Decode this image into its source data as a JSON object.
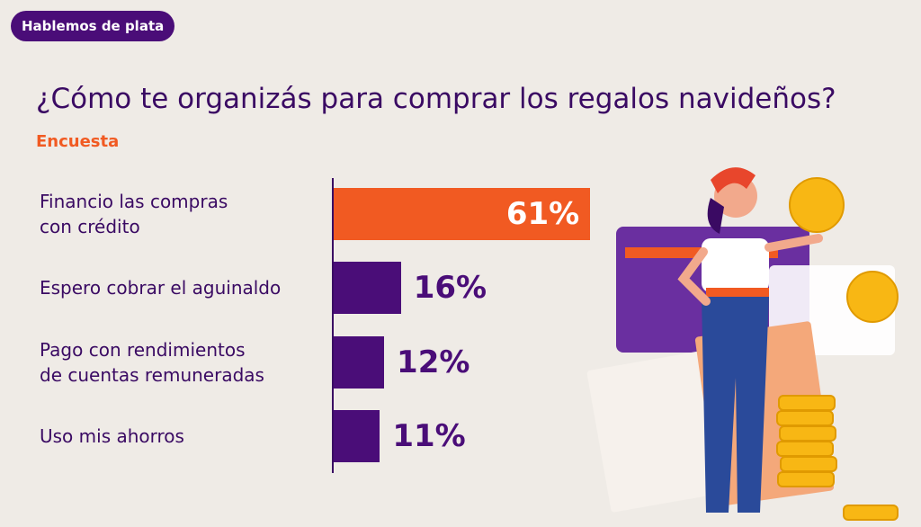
{
  "badge": "Hablemos de plata",
  "chart_data": {
    "type": "bar",
    "orientation": "horizontal",
    "title": "¿Cómo te organizás para comprar los regalos navideños?",
    "subtitle": "Encuesta",
    "categories": [
      "Financio las compras\ncon crédito",
      "Espero cobrar el aguinaldo",
      "Pago con rendimientos\nde cuentas remuneradas",
      "Uso mis ahorros"
    ],
    "values": [
      61,
      16,
      12,
      11
    ],
    "value_labels": [
      "61%",
      "16%",
      "12%",
      "11%"
    ],
    "colors": [
      "#f15a22",
      "#4a0d78",
      "#4a0d78",
      "#4a0d78"
    ]
  }
}
